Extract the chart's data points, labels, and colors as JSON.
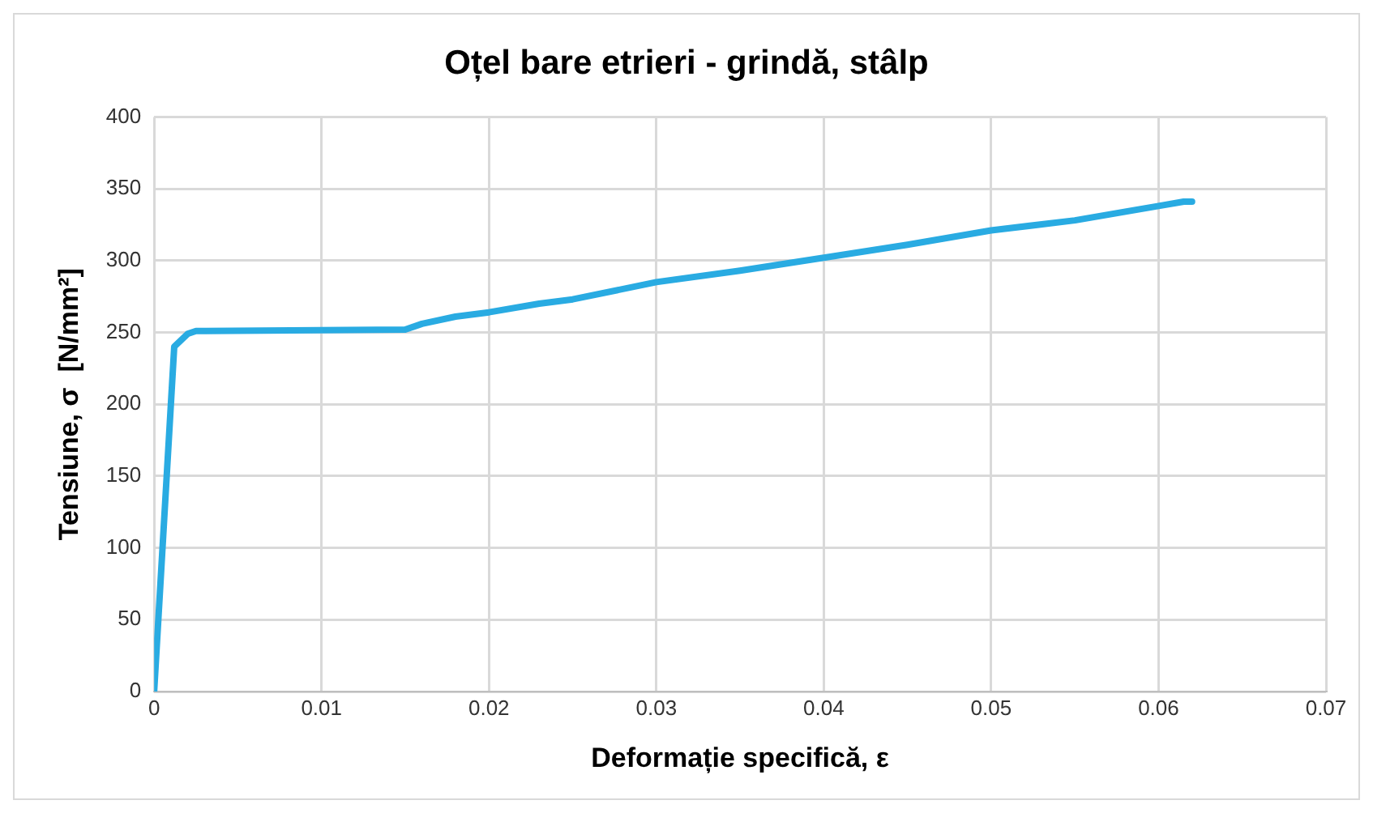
{
  "chart_data": {
    "type": "line",
    "title": "Oțel bare etrieri - grindă, stâlp",
    "xlabel": "Deformație specifică, ε",
    "ylabel": "Tensiune, σ  [N/mm²]",
    "x": [
      0,
      0.0012,
      0.002,
      0.0025,
      0.015,
      0.016,
      0.018,
      0.02,
      0.023,
      0.025,
      0.03,
      0.035,
      0.04,
      0.045,
      0.05,
      0.055,
      0.06,
      0.0615,
      0.062
    ],
    "series": [
      {
        "color": "#29abe2",
        "values": [
          0,
          240,
          249,
          251,
          252,
          256,
          261,
          264,
          270,
          273,
          285,
          293,
          302,
          311,
          321,
          328,
          338,
          341,
          341
        ]
      }
    ],
    "xlim": [
      0,
      0.07
    ],
    "xticks": [
      0,
      0.01,
      0.02,
      0.03,
      0.04,
      0.05,
      0.06,
      0.07
    ],
    "ylim": [
      0,
      400
    ],
    "yticks": [
      0,
      50,
      100,
      150,
      200,
      250,
      300,
      350,
      400
    ],
    "grid": true,
    "legend": false,
    "marker": "none",
    "line_style": "solid"
  }
}
